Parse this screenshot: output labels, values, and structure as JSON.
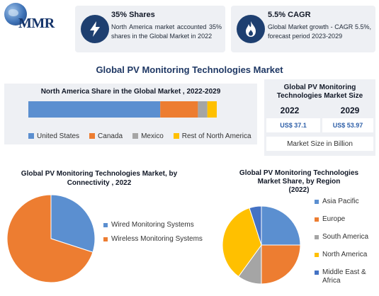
{
  "brand": {
    "logo_text": "MMR"
  },
  "kpis": [
    {
      "title": "35% Shares",
      "body": "North America market accounted 35% shares in the Global Market in 2022",
      "icon": "lightning-icon"
    },
    {
      "title": "5.5% CAGR",
      "body": "Global Market growth - CAGR 5.5%, forecast period 2023-2029",
      "icon": "flame-icon"
    }
  ],
  "main_title": "Global PV Monitoring Technologies Market",
  "market_size": {
    "title": "Global PV Monitoring Technologies Market Size",
    "years": [
      "2022",
      "2029"
    ],
    "values": [
      "US$ 37.1",
      "US$ 53.97"
    ],
    "footer": "Market Size in Billion"
  },
  "colors": {
    "panel": "#eef0f4",
    "navy": "#1e3f70",
    "blue": "#5b8fd0",
    "orange": "#ed7d31",
    "gray": "#a5a5a5",
    "yellow": "#ffc000",
    "dark_blue": "#4472c4"
  },
  "chart_data": [
    {
      "type": "bar",
      "stacked": true,
      "orientation": "horizontal",
      "title": "North America Share in the Global Market , 2022-2029",
      "series": [
        {
          "name": "United States",
          "value": 70,
          "color": "#5b8fd0"
        },
        {
          "name": "Canada",
          "value": 20,
          "color": "#ed7d31"
        },
        {
          "name": "Mexico",
          "value": 5,
          "color": "#a5a5a5"
        },
        {
          "name": "Rest of North America",
          "value": 5,
          "color": "#ffc000"
        }
      ],
      "legend": "bottom"
    },
    {
      "type": "pie",
      "title": "Global PV Monitoring Technologies Market, by Connectivity , 2022",
      "slices": [
        {
          "label": "Wired Monitoring Systems",
          "value": 30,
          "color": "#5b8fd0"
        },
        {
          "label": "Wireless Monitoring Systems",
          "value": 70,
          "color": "#ed7d31"
        }
      ],
      "legend": "right"
    },
    {
      "type": "pie",
      "title": "Global PV Monitoring Technologies Market Share, by Region",
      "subtitle": "(2022)",
      "slices": [
        {
          "label": "Asia Pacific",
          "value": 25,
          "color": "#5b8fd0"
        },
        {
          "label": "Europe",
          "value": 25,
          "color": "#ed7d31"
        },
        {
          "label": "South America",
          "value": 10,
          "color": "#a5a5a5"
        },
        {
          "label": "North America",
          "value": 35,
          "color": "#ffc000"
        },
        {
          "label": "Middle East & Africa",
          "value": 5,
          "color": "#4472c4"
        }
      ],
      "legend": "right"
    }
  ]
}
